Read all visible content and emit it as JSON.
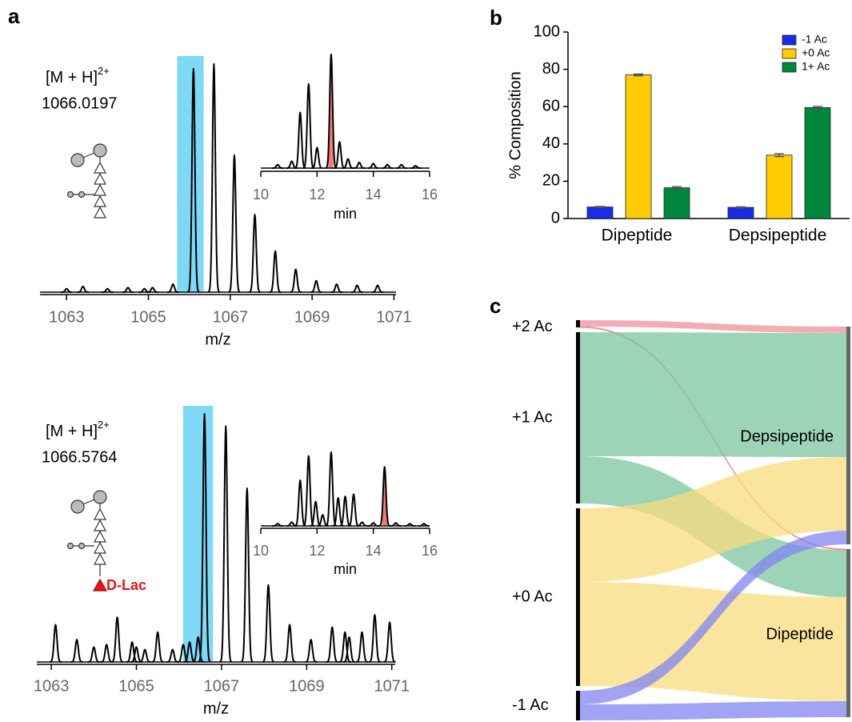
{
  "chart_data": [
    {
      "type": "spectrum",
      "panel": "a",
      "annotation": "[M + H]",
      "annotation_sup": "2+",
      "mass": "1066.0197",
      "xlabel": "m/z",
      "xlim": [
        1062.35,
        1071.05
      ],
      "xticks": [
        1063,
        1065,
        1067,
        1069,
        1071
      ],
      "ylim": [
        0,
        100
      ],
      "x": [
        1063.0,
        1063.4,
        1064.0,
        1064.5,
        1064.9,
        1065.1,
        1065.6,
        1066.1,
        1066.6,
        1067.1,
        1067.6,
        1068.1,
        1068.6,
        1069.1,
        1069.6,
        1070.1,
        1070.6
      ],
      "values": [
        1.5,
        2.5,
        1.5,
        2,
        1.5,
        2,
        3.5,
        98,
        100,
        60,
        34,
        18,
        10,
        5,
        3.5,
        3,
        3
      ],
      "color": "#000000",
      "highlight": [
        1065.7,
        1066.35
      ],
      "highlight_color": "#7fd8f5"
    },
    {
      "type": "chromatogram",
      "xlabel": "min",
      "xlim": [
        10,
        16
      ],
      "xticks": [
        10,
        12,
        14,
        16
      ],
      "ylim": [
        0,
        100
      ],
      "x": [
        10.6,
        11.1,
        11.4,
        11.7,
        12.0,
        12.5,
        12.8,
        13.1,
        13.5,
        14.0,
        14.5,
        15.0,
        15.5
      ],
      "values": [
        3,
        6,
        49,
        74,
        18,
        100,
        23,
        8,
        5,
        4,
        3,
        3,
        2
      ],
      "color": "#000000",
      "highlight": [
        12.4,
        12.58
      ],
      "highlight_color": "#f47a7a"
    },
    {
      "type": "spectrum",
      "annotation": "[M + H]",
      "annotation_sup": "2+",
      "mass": "1066.5764",
      "modification": "D-Lac",
      "xlabel": "m/z",
      "xlim": [
        1062.66,
        1071.08
      ],
      "xticks": [
        1063,
        1065,
        1067,
        1069,
        1071
      ],
      "ylim": [
        0,
        100
      ],
      "x": [
        1063.1,
        1063.6,
        1064.0,
        1064.3,
        1064.55,
        1064.9,
        1065.0,
        1065.2,
        1065.5,
        1065.85,
        1066.1,
        1066.25,
        1066.45,
        1066.6,
        1067.1,
        1067.6,
        1068.1,
        1068.6,
        1069.1,
        1069.6,
        1069.9,
        1070.0,
        1070.3,
        1070.6,
        1070.95
      ],
      "values": [
        15,
        9,
        6,
        7,
        18,
        8,
        6,
        5,
        12,
        5,
        7,
        8,
        10,
        100,
        95,
        70,
        31,
        15,
        9,
        14,
        12,
        10,
        12,
        19,
        16
      ],
      "color": "#000000",
      "highlight": [
        1066.1,
        1066.8
      ],
      "highlight_color": "#7fd8f5"
    },
    {
      "type": "chromatogram",
      "xlabel": "min",
      "xlim": [
        10,
        16
      ],
      "xticks": [
        10,
        12,
        14,
        16
      ],
      "ylim": [
        0,
        100
      ],
      "x": [
        10.6,
        11.1,
        11.4,
        11.7,
        11.95,
        12.2,
        12.5,
        12.75,
        13.0,
        13.3,
        13.6,
        14.0,
        14.4,
        14.8,
        15.3,
        15.8
      ],
      "values": [
        3,
        5,
        62,
        95,
        33,
        15,
        100,
        38,
        40,
        43,
        5,
        4,
        80,
        4,
        3,
        3
      ],
      "color": "#000000",
      "highlight": [
        14.32,
        14.5
      ],
      "highlight_color": "#f47a7a"
    },
    {
      "type": "bar",
      "panel": "b",
      "ylabel": "% Composition",
      "categories": [
        "Dipeptide",
        "Depsipeptide"
      ],
      "ylim": [
        0,
        100
      ],
      "yticks": [
        0,
        20,
        40,
        60,
        80,
        100
      ],
      "legend": "upper right",
      "series": [
        {
          "name": "-1 Ac",
          "color": "#1a2be8",
          "values": [
            6.2,
            6
          ],
          "errors": [
            0.3,
            0.3
          ]
        },
        {
          "name": "+0 Ac",
          "color": "#ffcc00",
          "values": [
            77,
            34
          ],
          "errors": [
            0.5,
            0.8
          ]
        },
        {
          "name": "1+ Ac",
          "color": "#00873e",
          "values": [
            16.5,
            59.5
          ],
          "errors": [
            0.6,
            0.6
          ]
        }
      ]
    },
    {
      "type": "sankey",
      "panel": "c",
      "sources": [
        "+2 Ac",
        "+1 Ac",
        "+0 Ac",
        "-1 Ac"
      ],
      "source_colors": [
        "#f0909b",
        "#7cc59f",
        "#f8dc7e",
        "#8284f0"
      ],
      "targets": [
        "Depsipeptide",
        "Dipeptide"
      ],
      "values": [
        [
          8,
          1
        ],
        [
          155,
          59
        ],
        [
          92,
          130
        ],
        [
          17,
          20
        ]
      ]
    }
  ]
}
